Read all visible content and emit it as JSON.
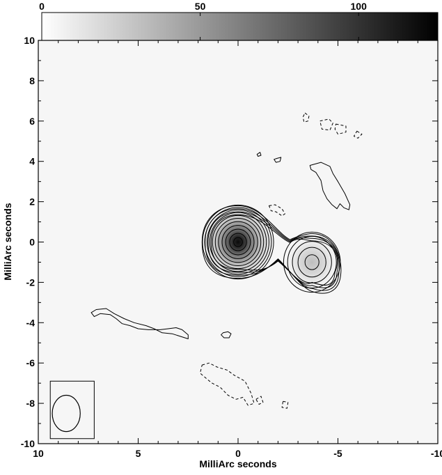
{
  "chart_data": {
    "type": "heatmap",
    "title": "",
    "xlabel": "MilliArc seconds",
    "ylabel": "MilliArc seconds",
    "xlim": [
      10,
      -10
    ],
    "ylim": [
      -10,
      10
    ],
    "x_ticks": [
      10,
      5,
      0,
      -5,
      -10
    ],
    "x_tick_labels": [
      "10",
      "5",
      "0",
      "-5",
      "-10"
    ],
    "y_ticks": [
      -10,
      -8,
      -6,
      -4,
      -2,
      0,
      2,
      4,
      6,
      8,
      10
    ],
    "y_tick_labels": [
      "-10",
      "-8",
      "-6",
      "-4",
      "-2",
      "0",
      "2",
      "4",
      "6",
      "8",
      "10"
    ],
    "colorbar": {
      "range": [
        0,
        125
      ],
      "ticks": [
        0,
        50,
        100
      ],
      "tick_labels": [
        "0",
        "50",
        "100"
      ],
      "colormap": "grayscale (white → black)",
      "placement": "top"
    },
    "components": [
      {
        "name": "core",
        "x": 0.0,
        "y": 0.0,
        "peak": 125
      },
      {
        "name": "secondary",
        "x": -3.7,
        "y": -1.0,
        "peak": 25
      }
    ],
    "core_contour_radii": [
      0.22,
      0.42,
      0.62,
      0.8,
      0.98,
      1.14,
      1.28,
      1.42,
      1.55,
      1.67,
      1.78
    ],
    "secondary_contour_radii": [
      0.35,
      0.7,
      0.98,
      1.22,
      1.42
    ],
    "beam": {
      "x": 8.6,
      "y": -8.5,
      "major_axis": 1.8,
      "minor_axis": 1.4,
      "position": "bottom-left"
    },
    "positive_island_contours": [
      [
        [
          7.35,
          -3.5
        ],
        [
          7.1,
          -3.35
        ],
        [
          6.6,
          -3.3
        ],
        [
          6.2,
          -3.55
        ],
        [
          5.7,
          -3.8
        ],
        [
          5.2,
          -4.0
        ],
        [
          4.6,
          -4.15
        ],
        [
          4.2,
          -4.3
        ],
        [
          3.8,
          -4.5
        ],
        [
          3.3,
          -4.55
        ],
        [
          2.5,
          -4.8
        ],
        [
          2.5,
          -4.6
        ],
        [
          2.8,
          -4.35
        ],
        [
          3.1,
          -4.25
        ],
        [
          3.5,
          -4.3
        ],
        [
          3.9,
          -4.35
        ],
        [
          4.5,
          -4.35
        ],
        [
          5.0,
          -4.3
        ],
        [
          5.4,
          -4.15
        ],
        [
          5.8,
          -4.05
        ],
        [
          6.1,
          -3.8
        ],
        [
          6.4,
          -3.6
        ],
        [
          6.9,
          -3.55
        ],
        [
          7.2,
          -3.7
        ]
      ],
      [
        [
          0.75,
          -4.5
        ],
        [
          0.5,
          -4.45
        ],
        [
          0.35,
          -4.55
        ],
        [
          0.45,
          -4.75
        ],
        [
          0.7,
          -4.75
        ],
        [
          0.85,
          -4.6
        ]
      ],
      [
        [
          -3.6,
          3.8
        ],
        [
          -4.15,
          3.95
        ],
        [
          -4.6,
          3.75
        ],
        [
          -4.75,
          3.4
        ],
        [
          -5.0,
          3.0
        ],
        [
          -5.35,
          2.4
        ],
        [
          -5.6,
          1.85
        ],
        [
          -5.55,
          1.6
        ],
        [
          -5.3,
          1.7
        ],
        [
          -5.1,
          1.9
        ],
        [
          -4.95,
          1.65
        ],
        [
          -4.7,
          1.85
        ],
        [
          -4.45,
          2.15
        ],
        [
          -4.25,
          2.55
        ],
        [
          -4.15,
          3.05
        ],
        [
          -3.9,
          3.45
        ],
        [
          -3.65,
          3.6
        ]
      ],
      [
        [
          -1.95,
          4.15
        ],
        [
          -2.15,
          4.2
        ],
        [
          -2.1,
          4.0
        ],
        [
          -1.9,
          3.95
        ],
        [
          -1.8,
          4.1
        ]
      ],
      [
        [
          -0.95,
          4.35
        ],
        [
          -1.1,
          4.45
        ],
        [
          -1.15,
          4.3
        ],
        [
          -1.0,
          4.25
        ]
      ]
    ],
    "negative_island_contours": [
      [
        [
          -1.55,
          1.8
        ],
        [
          -1.85,
          1.85
        ],
        [
          -2.2,
          1.65
        ],
        [
          -2.35,
          1.4
        ],
        [
          -2.2,
          1.3
        ],
        [
          -1.9,
          1.5
        ],
        [
          -1.65,
          1.55
        ]
      ],
      [
        [
          -3.35,
          6.4
        ],
        [
          -3.55,
          6.25
        ],
        [
          -3.5,
          6.0
        ],
        [
          -3.3,
          5.95
        ],
        [
          -3.25,
          6.2
        ]
      ],
      [
        [
          -4.1,
          6.0
        ],
        [
          -4.55,
          6.1
        ],
        [
          -4.75,
          5.9
        ],
        [
          -4.6,
          5.55
        ],
        [
          -4.2,
          5.6
        ]
      ],
      [
        [
          -4.9,
          5.85
        ],
        [
          -5.4,
          5.75
        ],
        [
          -5.4,
          5.45
        ],
        [
          -5.0,
          5.35
        ],
        [
          -4.85,
          5.6
        ]
      ],
      [
        [
          -5.95,
          5.5
        ],
        [
          -6.2,
          5.35
        ],
        [
          -6.0,
          5.15
        ],
        [
          -5.8,
          5.25
        ]
      ],
      [
        [
          1.8,
          -6.1
        ],
        [
          1.45,
          -6.0
        ],
        [
          1.05,
          -6.2
        ],
        [
          0.55,
          -6.35
        ],
        [
          0.2,
          -6.6
        ],
        [
          -0.35,
          -6.9
        ],
        [
          -0.65,
          -7.5
        ],
        [
          -0.8,
          -8.0
        ],
        [
          -0.5,
          -8.1
        ],
        [
          -0.25,
          -7.7
        ],
        [
          0.1,
          -7.8
        ],
        [
          0.5,
          -7.6
        ],
        [
          0.9,
          -7.2
        ],
        [
          1.3,
          -7.0
        ],
        [
          1.55,
          -6.8
        ],
        [
          1.9,
          -6.5
        ]
      ],
      [
        [
          -0.9,
          -7.8
        ],
        [
          -1.15,
          -7.65
        ],
        [
          -1.25,
          -7.95
        ],
        [
          -1.05,
          -8.05
        ]
      ],
      [
        [
          -2.25,
          -7.9
        ],
        [
          -2.5,
          -7.95
        ],
        [
          -2.45,
          -8.25
        ],
        [
          -2.2,
          -8.2
        ]
      ]
    ]
  }
}
